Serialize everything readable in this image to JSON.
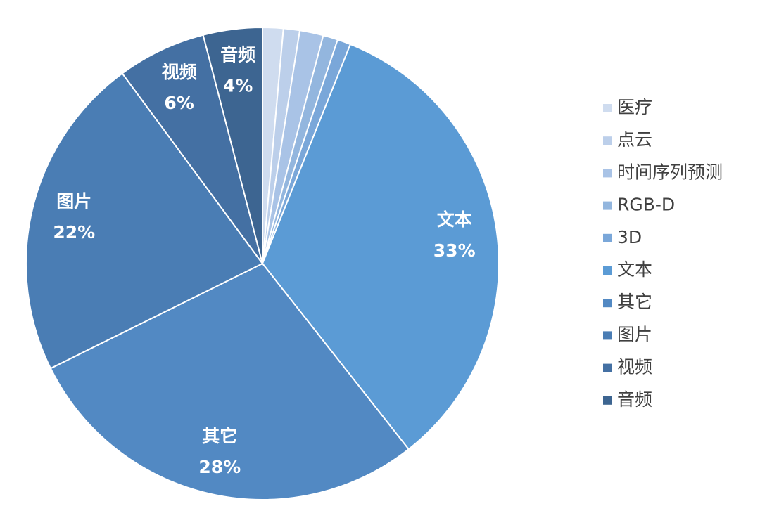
{
  "chart_data": {
    "type": "pie",
    "categories": [
      "医疗",
      "点云",
      "时间序列预测",
      "RGB-D",
      "3D",
      "文本",
      "其它",
      "图片",
      "视频",
      "音频"
    ],
    "values": [
      1.4,
      1.1,
      1.6,
      1.0,
      0.9,
      33,
      28,
      22,
      6,
      4
    ],
    "value_labels": [
      null,
      null,
      null,
      null,
      null,
      "33%",
      "28%",
      "22%",
      "6%",
      "4%"
    ],
    "colors": [
      "#cfdcef",
      "#bccfea",
      "#a9c3e6",
      "#93b6de",
      "#7aa7d9",
      "#5b9bd5",
      "#5289c3",
      "#4a7db4",
      "#4470a3",
      "#3d6591"
    ],
    "legend": "right"
  }
}
